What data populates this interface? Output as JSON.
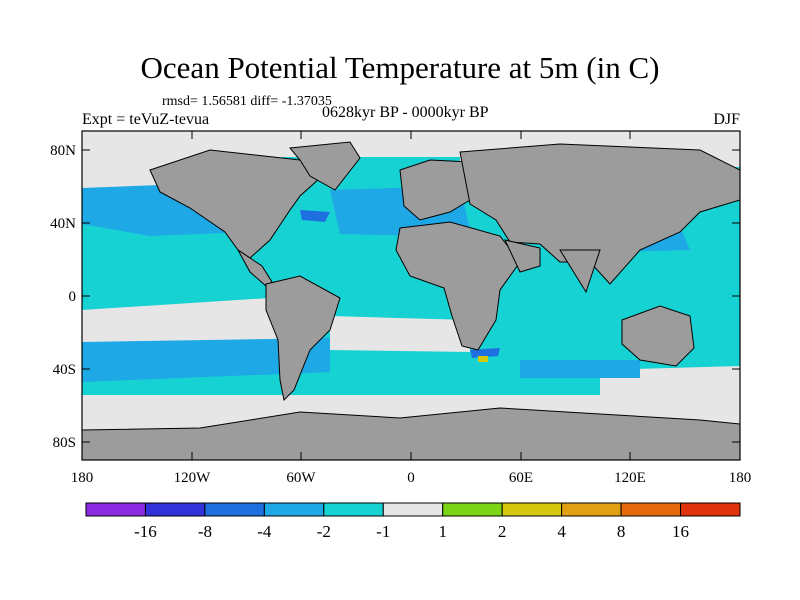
{
  "title": "Ocean Potential Temperature at 5m (in C)",
  "stats_line": "rmsd= 1.56581  diff= -1.37035",
  "experiment_label": "Expt = teVuZ-tevua",
  "period_label": "0628kyr BP - 0000kyr BP",
  "season_label": "DJF",
  "lat_ticks": [
    "80N",
    "40N",
    "0",
    "40S",
    "80S"
  ],
  "lon_ticks": [
    "180",
    "120W",
    "60W",
    "0",
    "60E",
    "120E",
    "180"
  ],
  "colorbar": {
    "colors": [
      "#8a2be2",
      "#3232d8",
      "#1e6fe0",
      "#1fa8e6",
      "#16d2d2",
      "#e6e6e6",
      "#7cd416",
      "#d4c80e",
      "#e0a012",
      "#e66a0c",
      "#e0320c"
    ],
    "labels": [
      "-16",
      "-8",
      "-4",
      "-2",
      "-1",
      "1",
      "2",
      "4",
      "8",
      "16"
    ]
  },
  "map_colors": {
    "land": "#9c9c9c",
    "near_zero": "#e6e6e6",
    "cool_light": "#16d2d2",
    "cool_mid": "#1fa8e6",
    "cool_strong": "#1e6fe0",
    "warm_light": "#d4c80e"
  }
}
